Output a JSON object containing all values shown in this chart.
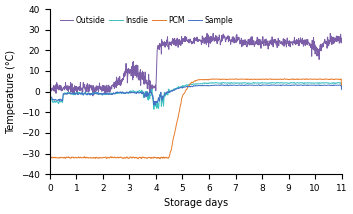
{
  "title": "",
  "xlabel": "Storage days",
  "ylabel": "Temperature (°C)",
  "xlim": [
    0,
    11
  ],
  "ylim": [
    -40,
    40
  ],
  "yticks": [
    -40,
    -30,
    -20,
    -10,
    0,
    10,
    20,
    30,
    40
  ],
  "xticks": [
    0,
    1,
    2,
    3,
    4,
    5,
    6,
    7,
    8,
    9,
    10,
    11
  ],
  "legend_labels": [
    "Outside",
    "Insdie",
    "PCM",
    "Sample"
  ],
  "line_colors": {
    "Outside": "#7b5ea7",
    "Insdie": "#3bbfbf",
    "PCM": "#e87b2a",
    "Sample": "#4472c4"
  },
  "line_widths": {
    "Outside": 0.7,
    "Insdie": 0.7,
    "PCM": 0.7,
    "Sample": 0.7
  }
}
